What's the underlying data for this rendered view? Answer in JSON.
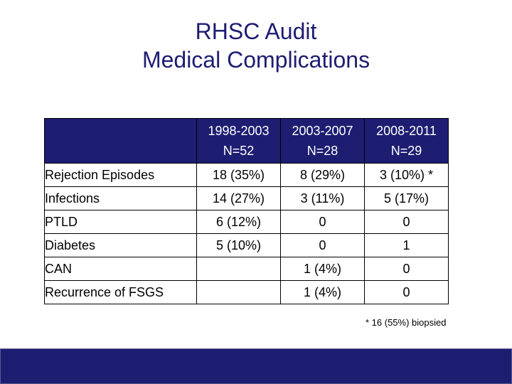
{
  "slide": {
    "title_line1": "RHSC Audit",
    "title_line2": "Medical Complications",
    "footnote": "* 16 (55%) biopsied"
  },
  "table": {
    "headers": [
      {
        "period": "1998-2003",
        "n": "N=52"
      },
      {
        "period": "2003-2007",
        "n": "N=28"
      },
      {
        "period": "2008-2011",
        "n": "N=29"
      }
    ],
    "rows": [
      {
        "label": "Rejection Episodes",
        "values": [
          "18 (35%)",
          "8 (29%)",
          "3 (10%) *"
        ]
      },
      {
        "label": "Infections",
        "values": [
          "14 (27%)",
          "3 (11%)",
          "5 (17%)"
        ]
      },
      {
        "label": "PTLD",
        "values": [
          "6 (12%)",
          "0",
          "0"
        ]
      },
      {
        "label": "Diabetes",
        "values": [
          "5 (10%)",
          "0",
          "1"
        ]
      },
      {
        "label": "CAN",
        "values": [
          "",
          "1 (4%)",
          "0"
        ]
      },
      {
        "label": "Recurrence of FSGS",
        "values": [
          "",
          "1 (4%)",
          "0"
        ]
      }
    ]
  },
  "colors": {
    "title": "#1d1d72",
    "header_bg": "#1d1d72",
    "bottom_bar": "#1d1d72"
  }
}
